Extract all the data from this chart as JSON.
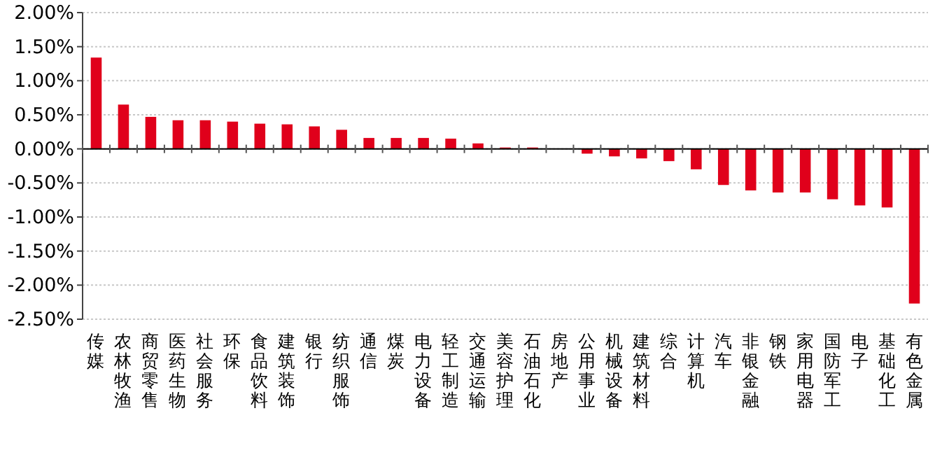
{
  "chart_data": {
    "type": "bar",
    "categories": [
      "传媒",
      "农林牧渔",
      "商贸零售",
      "医药生物",
      "社会服务",
      "环保",
      "食品饮料",
      "建筑装饰",
      "银行",
      "纺织服饰",
      "通信",
      "煤炭",
      "电力设备",
      "轻工制造",
      "交通运输",
      "美容护理",
      "石油石化",
      "房地产",
      "公用事业",
      "机械设备",
      "建筑材料",
      "综合",
      "计算机",
      "汽车",
      "非银金融",
      "钢铁",
      "家用电器",
      "国防军工",
      "电子",
      "基础化工",
      "有色金属"
    ],
    "values": [
      1.34,
      0.65,
      0.47,
      0.42,
      0.42,
      0.4,
      0.37,
      0.36,
      0.33,
      0.28,
      0.16,
      0.16,
      0.16,
      0.15,
      0.08,
      0.02,
      0.02,
      0.0,
      -0.07,
      -0.11,
      -0.14,
      -0.18,
      -0.3,
      -0.53,
      -0.61,
      -0.64,
      -0.64,
      -0.74,
      -0.83,
      -0.86,
      -2.27
    ],
    "color": "#e0001b",
    "ylim": [
      -2.5,
      2.0
    ],
    "yticks": [
      {
        "value": 2.0,
        "label": "2.00%"
      },
      {
        "value": 1.5,
        "label": "1.50%"
      },
      {
        "value": 1.0,
        "label": "1.00%"
      },
      {
        "value": 0.5,
        "label": "0.50%"
      },
      {
        "value": 0.0,
        "label": "0.00%"
      },
      {
        "value": -0.5,
        "label": "-0.50%"
      },
      {
        "value": -1.0,
        "label": "-1.00%"
      },
      {
        "value": -1.5,
        "label": "-1.50%"
      },
      {
        "value": -2.0,
        "label": "-2.00%"
      },
      {
        "value": -2.5,
        "label": "-2.50%"
      }
    ],
    "grid": "y"
  }
}
